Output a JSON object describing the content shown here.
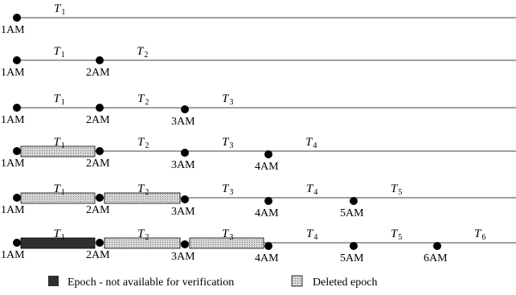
{
  "colors": {
    "line": "#000000",
    "point": "#000000",
    "not_available_fill": "#2f2f2f",
    "deleted_fill": "#d6d6d6",
    "deleted_dots": "#707070"
  },
  "timeline_rows": [
    {
      "points": [
        "1AM"
      ],
      "epochs": [
        {
          "symbol": "T",
          "index": "1",
          "state": "active"
        }
      ]
    },
    {
      "points": [
        "1AM",
        "2AM"
      ],
      "epochs": [
        {
          "symbol": "T",
          "index": "1",
          "state": "active"
        },
        {
          "symbol": "T",
          "index": "2",
          "state": "active"
        }
      ]
    },
    {
      "points": [
        "1AM",
        "2AM",
        "3AM"
      ],
      "epochs": [
        {
          "symbol": "T",
          "index": "1",
          "state": "active"
        },
        {
          "symbol": "T",
          "index": "2",
          "state": "active"
        },
        {
          "symbol": "T",
          "index": "3",
          "state": "active"
        }
      ]
    },
    {
      "points": [
        "1AM",
        "2AM",
        "3AM",
        "4AM"
      ],
      "epochs": [
        {
          "symbol": "T",
          "index": "1",
          "state": "deleted"
        },
        {
          "symbol": "T",
          "index": "2",
          "state": "active"
        },
        {
          "symbol": "T",
          "index": "3",
          "state": "active"
        },
        {
          "symbol": "T",
          "index": "4",
          "state": "active"
        }
      ]
    },
    {
      "points": [
        "1AM",
        "2AM",
        "3AM",
        "4AM",
        "5AM"
      ],
      "epochs": [
        {
          "symbol": "T",
          "index": "1",
          "state": "deleted"
        },
        {
          "symbol": "T",
          "index": "2",
          "state": "deleted"
        },
        {
          "symbol": "T",
          "index": "3",
          "state": "active"
        },
        {
          "symbol": "T",
          "index": "4",
          "state": "active"
        },
        {
          "symbol": "T",
          "index": "5",
          "state": "active"
        }
      ]
    },
    {
      "points": [
        "1AM",
        "2AM",
        "3AM",
        "4AM",
        "5AM",
        "6AM"
      ],
      "epochs": [
        {
          "symbol": "T",
          "index": "1",
          "state": "not_available"
        },
        {
          "symbol": "T",
          "index": "2",
          "state": "deleted"
        },
        {
          "symbol": "T",
          "index": "3",
          "state": "deleted"
        },
        {
          "symbol": "T",
          "index": "4",
          "state": "active"
        },
        {
          "symbol": "T",
          "index": "5",
          "state": "active"
        },
        {
          "symbol": "T",
          "index": "6",
          "state": "active"
        }
      ]
    }
  ],
  "legend": {
    "not_available_label": "Epoch - not available for verification",
    "deleted_label": "Deleted epoch"
  }
}
